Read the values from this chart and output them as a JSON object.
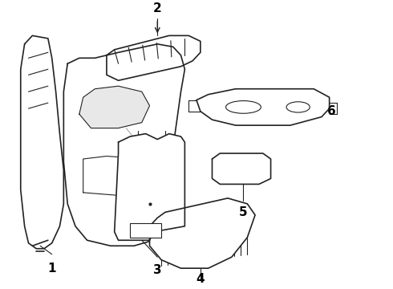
{
  "background_color": "#ffffff",
  "line_color": "#222222",
  "label_color": "#000000",
  "fig_width": 4.9,
  "fig_height": 3.6,
  "dpi": 100,
  "label_fontsize": 11,
  "label_fontweight": "bold"
}
